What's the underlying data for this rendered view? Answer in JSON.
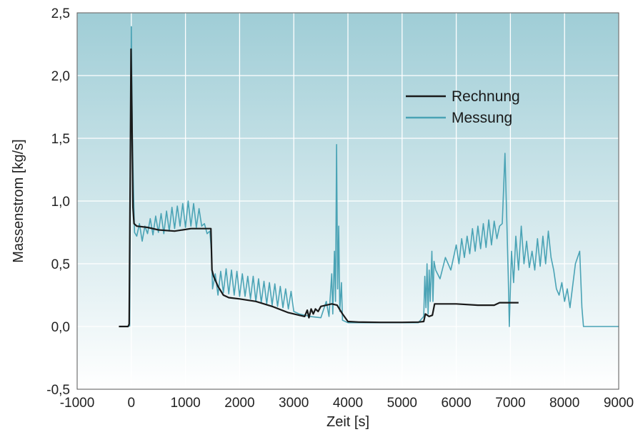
{
  "chart_data": {
    "type": "line",
    "xlabel": "Zeit [s]",
    "ylabel": "Massenstrom [kg/s]",
    "xlim": [
      -1000,
      9000
    ],
    "ylim": [
      -0.5,
      2.5
    ],
    "x_ticks": [
      "-1000",
      "0",
      "1000",
      "2000",
      "3000",
      "4000",
      "5000",
      "6000",
      "7000",
      "8000",
      "9000"
    ],
    "y_ticks": [
      "-0,5",
      "0,0",
      "0,5",
      "1,0",
      "1,5",
      "2,0",
      "2,5"
    ],
    "grid": true,
    "legend_position": "top-right",
    "background_gradient": [
      "#9fcdd6",
      "#ffffff"
    ],
    "series": [
      {
        "name": "Rechnung",
        "color": "#1a1a1a",
        "points": [
          [
            -230,
            0.0
          ],
          [
            -60,
            0.0
          ],
          [
            -40,
            0.02
          ],
          [
            -20,
            1.2
          ],
          [
            -5,
            2.21
          ],
          [
            10,
            1.7
          ],
          [
            30,
            0.95
          ],
          [
            50,
            0.82
          ],
          [
            100,
            0.8
          ],
          [
            300,
            0.79
          ],
          [
            500,
            0.77
          ],
          [
            800,
            0.76
          ],
          [
            1100,
            0.78
          ],
          [
            1400,
            0.78
          ],
          [
            1470,
            0.78
          ],
          [
            1490,
            0.45
          ],
          [
            1520,
            0.4
          ],
          [
            1600,
            0.32
          ],
          [
            1700,
            0.25
          ],
          [
            1800,
            0.23
          ],
          [
            2000,
            0.22
          ],
          [
            2300,
            0.2
          ],
          [
            2600,
            0.16
          ],
          [
            2900,
            0.11
          ],
          [
            3100,
            0.09
          ],
          [
            3200,
            0.08
          ],
          [
            3250,
            0.13
          ],
          [
            3280,
            0.07
          ],
          [
            3320,
            0.14
          ],
          [
            3360,
            0.1
          ],
          [
            3400,
            0.14
          ],
          [
            3450,
            0.12
          ],
          [
            3500,
            0.16
          ],
          [
            3600,
            0.17
          ],
          [
            3700,
            0.18
          ],
          [
            3800,
            0.17
          ],
          [
            3900,
            0.1
          ],
          [
            4000,
            0.04
          ],
          [
            4200,
            0.035
          ],
          [
            4600,
            0.033
          ],
          [
            5000,
            0.033
          ],
          [
            5300,
            0.035
          ],
          [
            5400,
            0.04
          ],
          [
            5430,
            0.1
          ],
          [
            5500,
            0.08
          ],
          [
            5560,
            0.09
          ],
          [
            5600,
            0.18
          ],
          [
            6000,
            0.18
          ],
          [
            6400,
            0.17
          ],
          [
            6700,
            0.17
          ],
          [
            6800,
            0.19
          ],
          [
            7000,
            0.19
          ],
          [
            7150,
            0.19
          ]
        ]
      },
      {
        "name": "Messung",
        "color": "#4aa3b5",
        "points": [
          [
            -30,
            0.0
          ],
          [
            -10,
            1.5
          ],
          [
            0,
            2.39
          ],
          [
            20,
            1.5
          ],
          [
            40,
            1.1
          ],
          [
            60,
            0.75
          ],
          [
            100,
            0.72
          ],
          [
            150,
            0.82
          ],
          [
            200,
            0.68
          ],
          [
            250,
            0.8
          ],
          [
            300,
            0.74
          ],
          [
            350,
            0.86
          ],
          [
            400,
            0.73
          ],
          [
            450,
            0.88
          ],
          [
            500,
            0.75
          ],
          [
            550,
            0.9
          ],
          [
            600,
            0.74
          ],
          [
            650,
            0.92
          ],
          [
            700,
            0.76
          ],
          [
            750,
            0.95
          ],
          [
            800,
            0.78
          ],
          [
            850,
            0.96
          ],
          [
            900,
            0.8
          ],
          [
            950,
            0.98
          ],
          [
            1000,
            0.79
          ],
          [
            1050,
            1.0
          ],
          [
            1100,
            0.8
          ],
          [
            1150,
            0.98
          ],
          [
            1200,
            0.79
          ],
          [
            1250,
            0.94
          ],
          [
            1300,
            0.8
          ],
          [
            1350,
            0.82
          ],
          [
            1400,
            0.74
          ],
          [
            1450,
            0.76
          ],
          [
            1480,
            0.6
          ],
          [
            1500,
            0.3
          ],
          [
            1550,
            0.42
          ],
          [
            1600,
            0.25
          ],
          [
            1650,
            0.44
          ],
          [
            1700,
            0.27
          ],
          [
            1750,
            0.46
          ],
          [
            1800,
            0.26
          ],
          [
            1850,
            0.45
          ],
          [
            1900,
            0.25
          ],
          [
            1950,
            0.44
          ],
          [
            2000,
            0.24
          ],
          [
            2050,
            0.42
          ],
          [
            2100,
            0.24
          ],
          [
            2150,
            0.4
          ],
          [
            2200,
            0.22
          ],
          [
            2250,
            0.4
          ],
          [
            2300,
            0.2
          ],
          [
            2350,
            0.38
          ],
          [
            2400,
            0.19
          ],
          [
            2450,
            0.36
          ],
          [
            2500,
            0.18
          ],
          [
            2550,
            0.35
          ],
          [
            2600,
            0.17
          ],
          [
            2650,
            0.34
          ],
          [
            2700,
            0.16
          ],
          [
            2750,
            0.32
          ],
          [
            2800,
            0.15
          ],
          [
            2850,
            0.3
          ],
          [
            2900,
            0.14
          ],
          [
            2950,
            0.28
          ],
          [
            3000,
            0.12
          ],
          [
            3100,
            0.1
          ],
          [
            3300,
            0.08
          ],
          [
            3500,
            0.07
          ],
          [
            3600,
            0.2
          ],
          [
            3650,
            0.08
          ],
          [
            3700,
            0.42
          ],
          [
            3720,
            0.1
          ],
          [
            3750,
            0.6
          ],
          [
            3770,
            0.2
          ],
          [
            3790,
            1.45
          ],
          [
            3810,
            0.3
          ],
          [
            3830,
            0.8
          ],
          [
            3850,
            0.12
          ],
          [
            3880,
            0.35
          ],
          [
            3900,
            0.05
          ],
          [
            4000,
            0.03
          ],
          [
            4500,
            0.03
          ],
          [
            5000,
            0.03
          ],
          [
            5300,
            0.03
          ],
          [
            5400,
            0.08
          ],
          [
            5420,
            0.4
          ],
          [
            5440,
            0.15
          ],
          [
            5460,
            0.5
          ],
          [
            5480,
            0.1
          ],
          [
            5500,
            0.45
          ],
          [
            5520,
            0.2
          ],
          [
            5550,
            0.6
          ],
          [
            5570,
            0.2
          ],
          [
            5590,
            0.52
          ],
          [
            5620,
            0.45
          ],
          [
            5700,
            0.38
          ],
          [
            5800,
            0.55
          ],
          [
            5900,
            0.45
          ],
          [
            6000,
            0.65
          ],
          [
            6050,
            0.5
          ],
          [
            6100,
            0.7
          ],
          [
            6150,
            0.55
          ],
          [
            6200,
            0.72
          ],
          [
            6250,
            0.58
          ],
          [
            6300,
            0.78
          ],
          [
            6350,
            0.6
          ],
          [
            6400,
            0.8
          ],
          [
            6450,
            0.62
          ],
          [
            6500,
            0.82
          ],
          [
            6550,
            0.63
          ],
          [
            6600,
            0.85
          ],
          [
            6650,
            0.65
          ],
          [
            6700,
            0.84
          ],
          [
            6750,
            0.7
          ],
          [
            6800,
            0.8
          ],
          [
            6850,
            0.82
          ],
          [
            6900,
            1.38
          ],
          [
            6930,
            0.9
          ],
          [
            6960,
            0.4
          ],
          [
            6980,
            0.0
          ],
          [
            7020,
            0.6
          ],
          [
            7060,
            0.35
          ],
          [
            7100,
            0.72
          ],
          [
            7150,
            0.45
          ],
          [
            7200,
            0.8
          ],
          [
            7250,
            0.5
          ],
          [
            7300,
            0.68
          ],
          [
            7350,
            0.47
          ],
          [
            7400,
            0.6
          ],
          [
            7450,
            0.45
          ],
          [
            7500,
            0.7
          ],
          [
            7550,
            0.48
          ],
          [
            7600,
            0.72
          ],
          [
            7650,
            0.5
          ],
          [
            7700,
            0.76
          ],
          [
            7750,
            0.55
          ],
          [
            7800,
            0.45
          ],
          [
            7850,
            0.3
          ],
          [
            7900,
            0.25
          ],
          [
            7950,
            0.35
          ],
          [
            8000,
            0.2
          ],
          [
            8050,
            0.3
          ],
          [
            8100,
            0.15
          ],
          [
            8200,
            0.5
          ],
          [
            8280,
            0.6
          ],
          [
            8320,
            0.15
          ],
          [
            8350,
            0.0
          ],
          [
            8600,
            0.0
          ],
          [
            9000,
            0.0
          ]
        ]
      }
    ]
  }
}
